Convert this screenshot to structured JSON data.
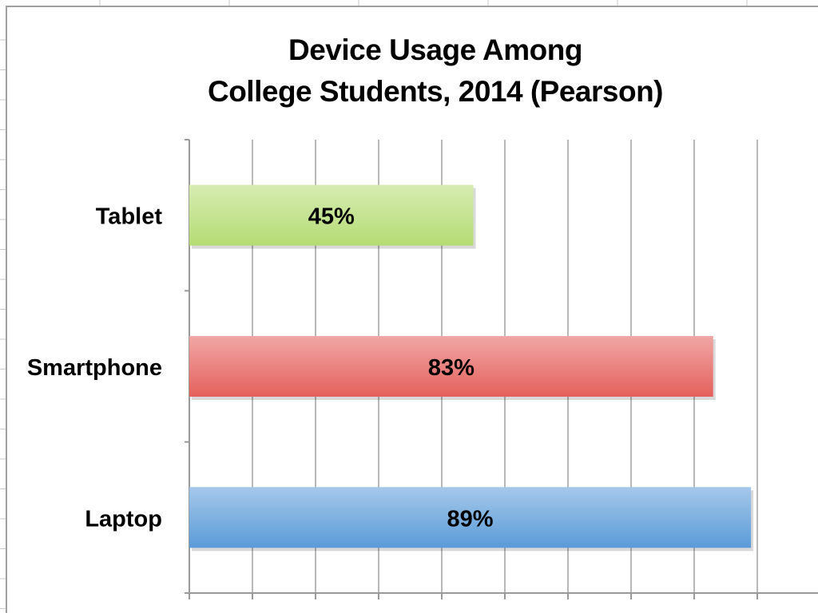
{
  "chart_data": {
    "type": "bar",
    "orientation": "horizontal",
    "title": "Device Usage Among College Students, 2014 (Pearson)",
    "title_lines": [
      "Device Usage Among",
      "College Students, 2014 (Pearson)"
    ],
    "categories": [
      "Tablet",
      "Smartphone",
      "Laptop"
    ],
    "values": [
      45,
      83,
      89
    ],
    "data_labels": [
      "45%",
      "83%",
      "89%"
    ],
    "colors": [
      "#b5dc74",
      "#e4605c",
      "#5b9bd8"
    ],
    "xlabel": "",
    "ylabel": "",
    "xlim": [
      0,
      100
    ],
    "x_tick_step": 10,
    "grid": true,
    "legend": "none"
  }
}
